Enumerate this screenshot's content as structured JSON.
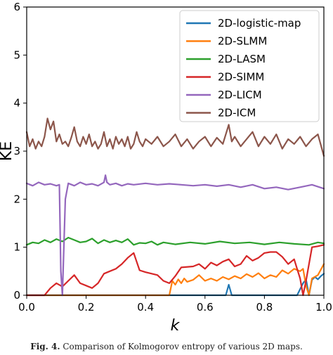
{
  "chart_data": {
    "type": "line",
    "xlabel": "k",
    "ylabel": "KE",
    "xlim": [
      0.0,
      1.0
    ],
    "ylim": [
      0,
      6
    ],
    "xticks": [
      "0.0",
      "0.2",
      "0.4",
      "0.6",
      "0.8",
      "1.0"
    ],
    "yticks": [
      "0",
      "1",
      "2",
      "3",
      "4",
      "5",
      "6"
    ],
    "grid": false,
    "legend_position": "top-right",
    "series": [
      {
        "name": "2D-logistic-map",
        "color": "#1f77b4",
        "points": [
          [
            0.0,
            0.0
          ],
          [
            0.67,
            0.0
          ],
          [
            0.68,
            0.22
          ],
          [
            0.69,
            0.0
          ],
          [
            0.91,
            0.0
          ],
          [
            0.93,
            0.25
          ],
          [
            0.94,
            0.33
          ],
          [
            0.95,
            0.0
          ],
          [
            0.96,
            0.32
          ],
          [
            0.97,
            0.38
          ],
          [
            0.98,
            0.33
          ],
          [
            0.99,
            0.4
          ],
          [
            1.0,
            0.45
          ]
        ]
      },
      {
        "name": "2D-SLMM",
        "color": "#ff7f0e",
        "points": [
          [
            0.0,
            0.0
          ],
          [
            0.48,
            0.0
          ],
          [
            0.49,
            0.3
          ],
          [
            0.5,
            0.22
          ],
          [
            0.51,
            0.33
          ],
          [
            0.52,
            0.25
          ],
          [
            0.53,
            0.35
          ],
          [
            0.54,
            0.28
          ],
          [
            0.56,
            0.32
          ],
          [
            0.58,
            0.42
          ],
          [
            0.6,
            0.3
          ],
          [
            0.62,
            0.35
          ],
          [
            0.64,
            0.3
          ],
          [
            0.66,
            0.38
          ],
          [
            0.68,
            0.33
          ],
          [
            0.7,
            0.4
          ],
          [
            0.72,
            0.35
          ],
          [
            0.74,
            0.44
          ],
          [
            0.76,
            0.38
          ],
          [
            0.78,
            0.46
          ],
          [
            0.8,
            0.35
          ],
          [
            0.82,
            0.42
          ],
          [
            0.84,
            0.38
          ],
          [
            0.86,
            0.52
          ],
          [
            0.88,
            0.45
          ],
          [
            0.9,
            0.55
          ],
          [
            0.92,
            0.5
          ],
          [
            0.93,
            0.55
          ],
          [
            0.94,
            0.2
          ],
          [
            0.95,
            0.0
          ],
          [
            0.96,
            0.35
          ],
          [
            0.98,
            0.42
          ],
          [
            1.0,
            0.65
          ]
        ]
      },
      {
        "name": "2D-LASM",
        "color": "#2ca02c",
        "points": [
          [
            0.0,
            1.05
          ],
          [
            0.02,
            1.1
          ],
          [
            0.04,
            1.08
          ],
          [
            0.06,
            1.15
          ],
          [
            0.08,
            1.1
          ],
          [
            0.1,
            1.17
          ],
          [
            0.12,
            1.12
          ],
          [
            0.14,
            1.2
          ],
          [
            0.16,
            1.15
          ],
          [
            0.18,
            1.1
          ],
          [
            0.2,
            1.12
          ],
          [
            0.22,
            1.18
          ],
          [
            0.24,
            1.08
          ],
          [
            0.26,
            1.15
          ],
          [
            0.28,
            1.1
          ],
          [
            0.3,
            1.14
          ],
          [
            0.32,
            1.1
          ],
          [
            0.34,
            1.17
          ],
          [
            0.36,
            1.05
          ],
          [
            0.38,
            1.09
          ],
          [
            0.4,
            1.08
          ],
          [
            0.42,
            1.12
          ],
          [
            0.44,
            1.05
          ],
          [
            0.46,
            1.1
          ],
          [
            0.5,
            1.06
          ],
          [
            0.55,
            1.1
          ],
          [
            0.6,
            1.07
          ],
          [
            0.65,
            1.12
          ],
          [
            0.7,
            1.08
          ],
          [
            0.75,
            1.1
          ],
          [
            0.8,
            1.06
          ],
          [
            0.85,
            1.1
          ],
          [
            0.9,
            1.07
          ],
          [
            0.95,
            1.05
          ],
          [
            0.98,
            1.1
          ],
          [
            1.0,
            1.08
          ]
        ]
      },
      {
        "name": "2D-SIMM",
        "color": "#d62728",
        "points": [
          [
            0.0,
            0.0
          ],
          [
            0.06,
            0.0
          ],
          [
            0.08,
            0.15
          ],
          [
            0.1,
            0.25
          ],
          [
            0.12,
            0.18
          ],
          [
            0.14,
            0.3
          ],
          [
            0.16,
            0.42
          ],
          [
            0.18,
            0.25
          ],
          [
            0.2,
            0.2
          ],
          [
            0.22,
            0.15
          ],
          [
            0.24,
            0.25
          ],
          [
            0.26,
            0.45
          ],
          [
            0.28,
            0.5
          ],
          [
            0.3,
            0.55
          ],
          [
            0.32,
            0.65
          ],
          [
            0.34,
            0.78
          ],
          [
            0.36,
            0.88
          ],
          [
            0.37,
            0.7
          ],
          [
            0.38,
            0.52
          ],
          [
            0.4,
            0.48
          ],
          [
            0.44,
            0.42
          ],
          [
            0.46,
            0.3
          ],
          [
            0.48,
            0.25
          ],
          [
            0.5,
            0.4
          ],
          [
            0.52,
            0.58
          ],
          [
            0.56,
            0.6
          ],
          [
            0.58,
            0.65
          ],
          [
            0.6,
            0.55
          ],
          [
            0.62,
            0.68
          ],
          [
            0.64,
            0.62
          ],
          [
            0.66,
            0.7
          ],
          [
            0.68,
            0.75
          ],
          [
            0.7,
            0.6
          ],
          [
            0.72,
            0.65
          ],
          [
            0.74,
            0.82
          ],
          [
            0.76,
            0.72
          ],
          [
            0.78,
            0.78
          ],
          [
            0.8,
            0.88
          ],
          [
            0.82,
            0.9
          ],
          [
            0.84,
            0.9
          ],
          [
            0.86,
            0.8
          ],
          [
            0.88,
            0.65
          ],
          [
            0.9,
            0.75
          ],
          [
            0.91,
            0.55
          ],
          [
            0.92,
            0.35
          ],
          [
            0.93,
            0.0
          ],
          [
            0.94,
            0.3
          ],
          [
            0.96,
            1.0
          ],
          [
            0.98,
            1.02
          ],
          [
            1.0,
            1.05
          ]
        ]
      },
      {
        "name": "2D-LICM",
        "color": "#9467bd",
        "points": [
          [
            0.0,
            2.33
          ],
          [
            0.02,
            2.28
          ],
          [
            0.04,
            2.35
          ],
          [
            0.06,
            2.3
          ],
          [
            0.08,
            2.32
          ],
          [
            0.1,
            2.28
          ],
          [
            0.11,
            2.3
          ],
          [
            0.115,
            0.5
          ],
          [
            0.12,
            0.0
          ],
          [
            0.125,
            1.0
          ],
          [
            0.13,
            2.0
          ],
          [
            0.14,
            2.33
          ],
          [
            0.16,
            2.28
          ],
          [
            0.18,
            2.35
          ],
          [
            0.2,
            2.3
          ],
          [
            0.22,
            2.32
          ],
          [
            0.24,
            2.28
          ],
          [
            0.26,
            2.35
          ],
          [
            0.265,
            2.5
          ],
          [
            0.27,
            2.35
          ],
          [
            0.28,
            2.3
          ],
          [
            0.3,
            2.33
          ],
          [
            0.32,
            2.28
          ],
          [
            0.34,
            2.32
          ],
          [
            0.36,
            2.3
          ],
          [
            0.4,
            2.33
          ],
          [
            0.44,
            2.3
          ],
          [
            0.48,
            2.32
          ],
          [
            0.52,
            2.3
          ],
          [
            0.56,
            2.28
          ],
          [
            0.6,
            2.3
          ],
          [
            0.64,
            2.27
          ],
          [
            0.68,
            2.3
          ],
          [
            0.72,
            2.25
          ],
          [
            0.76,
            2.3
          ],
          [
            0.8,
            2.22
          ],
          [
            0.84,
            2.25
          ],
          [
            0.88,
            2.2
          ],
          [
            0.92,
            2.25
          ],
          [
            0.96,
            2.3
          ],
          [
            1.0,
            2.22
          ]
        ]
      },
      {
        "name": "2D-ICM",
        "color": "#8c564b",
        "points": [
          [
            0.0,
            3.4
          ],
          [
            0.01,
            3.1
          ],
          [
            0.02,
            3.25
          ],
          [
            0.03,
            3.05
          ],
          [
            0.04,
            3.2
          ],
          [
            0.05,
            3.1
          ],
          [
            0.06,
            3.3
          ],
          [
            0.07,
            3.68
          ],
          [
            0.08,
            3.45
          ],
          [
            0.09,
            3.62
          ],
          [
            0.1,
            3.2
          ],
          [
            0.11,
            3.35
          ],
          [
            0.12,
            3.15
          ],
          [
            0.13,
            3.2
          ],
          [
            0.14,
            3.1
          ],
          [
            0.15,
            3.28
          ],
          [
            0.16,
            3.5
          ],
          [
            0.17,
            3.2
          ],
          [
            0.18,
            3.1
          ],
          [
            0.19,
            3.3
          ],
          [
            0.2,
            3.15
          ],
          [
            0.21,
            3.35
          ],
          [
            0.22,
            3.1
          ],
          [
            0.23,
            3.2
          ],
          [
            0.24,
            3.05
          ],
          [
            0.25,
            3.15
          ],
          [
            0.26,
            3.4
          ],
          [
            0.27,
            3.1
          ],
          [
            0.28,
            3.25
          ],
          [
            0.29,
            3.05
          ],
          [
            0.3,
            3.3
          ],
          [
            0.31,
            3.15
          ],
          [
            0.32,
            3.25
          ],
          [
            0.33,
            3.1
          ],
          [
            0.34,
            3.3
          ],
          [
            0.35,
            3.05
          ],
          [
            0.36,
            3.15
          ],
          [
            0.37,
            3.4
          ],
          [
            0.38,
            3.2
          ],
          [
            0.39,
            3.1
          ],
          [
            0.4,
            3.25
          ],
          [
            0.42,
            3.15
          ],
          [
            0.44,
            3.3
          ],
          [
            0.46,
            3.1
          ],
          [
            0.48,
            3.2
          ],
          [
            0.5,
            3.35
          ],
          [
            0.52,
            3.1
          ],
          [
            0.54,
            3.25
          ],
          [
            0.56,
            3.05
          ],
          [
            0.58,
            3.2
          ],
          [
            0.6,
            3.3
          ],
          [
            0.62,
            3.1
          ],
          [
            0.64,
            3.28
          ],
          [
            0.66,
            3.15
          ],
          [
            0.68,
            3.55
          ],
          [
            0.69,
            3.2
          ],
          [
            0.7,
            3.3
          ],
          [
            0.72,
            3.1
          ],
          [
            0.74,
            3.25
          ],
          [
            0.76,
            3.4
          ],
          [
            0.78,
            3.1
          ],
          [
            0.8,
            3.3
          ],
          [
            0.82,
            3.15
          ],
          [
            0.84,
            3.35
          ],
          [
            0.86,
            3.05
          ],
          [
            0.88,
            3.25
          ],
          [
            0.9,
            3.15
          ],
          [
            0.92,
            3.3
          ],
          [
            0.94,
            3.1
          ],
          [
            0.96,
            3.25
          ],
          [
            0.98,
            3.35
          ],
          [
            1.0,
            2.9
          ]
        ]
      }
    ]
  },
  "caption": {
    "label": "Fig. 4.",
    "text": "Comparison of Kolmogorov entropy of various 2D maps."
  }
}
